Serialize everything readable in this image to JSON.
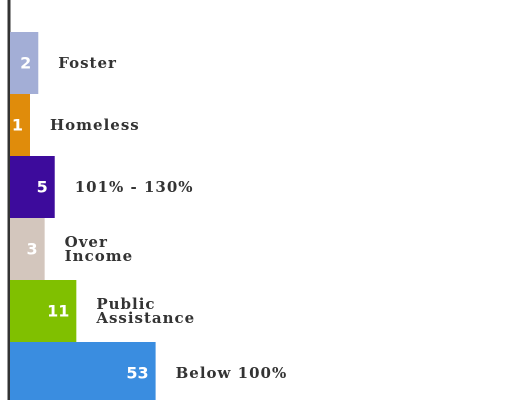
{
  "chart_data": {
    "type": "bar",
    "orientation": "horizontal",
    "categories": [
      "Foster",
      "Homeless",
      "101% - 130%",
      "Over\nIncome",
      "Public\nAssistance",
      "Below 100%"
    ],
    "values": [
      2,
      1,
      5,
      3,
      11,
      53
    ],
    "colors": [
      "#a3aed6",
      "#e08c0b",
      "#3d0b9c",
      "#d3c6bd",
      "#80c000",
      "#3a8de0"
    ]
  }
}
